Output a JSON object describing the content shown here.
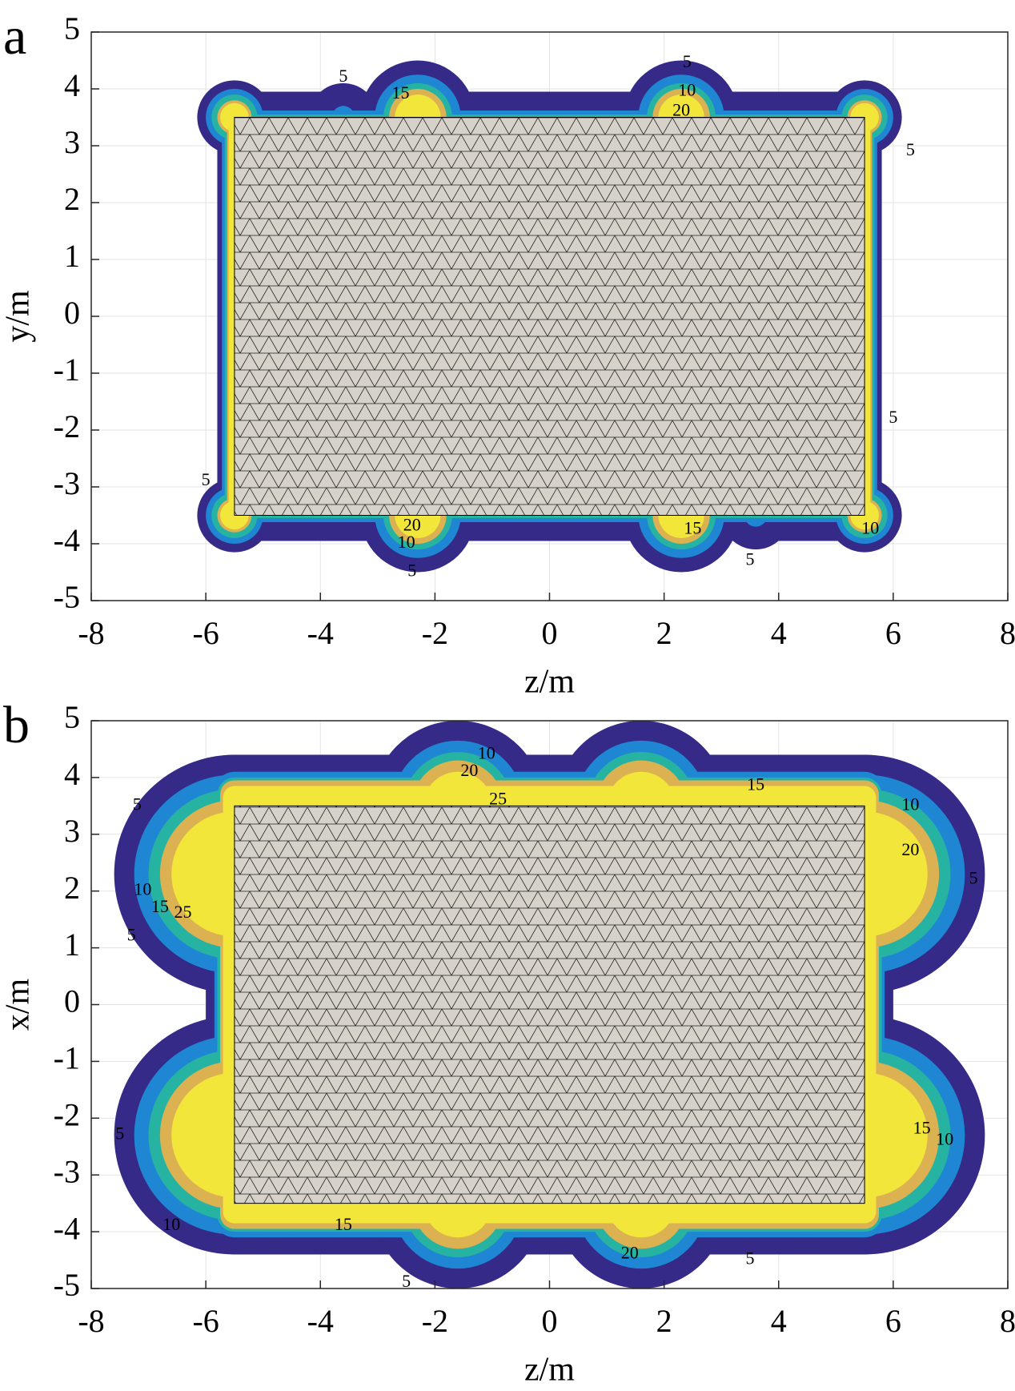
{
  "chart_data": [
    {
      "type": "contour",
      "title": "a",
      "xlabel": "z/m",
      "ylabel": "y/m",
      "xlim": [
        -8,
        8
      ],
      "ylim": [
        -5,
        5
      ],
      "xticks": [
        -8,
        -6,
        -4,
        -2,
        0,
        2,
        4,
        6,
        8
      ],
      "yticks": [
        -5,
        -4,
        -3,
        -2,
        -1,
        0,
        1,
        2,
        3,
        4,
        5
      ],
      "grid": true,
      "levels": [
        5,
        10,
        15,
        20,
        25
      ],
      "level_colors": [
        "#352a87",
        "#1f86d3",
        "#27b3a2",
        "#dcb152",
        "#f2e63a"
      ],
      "structure_x": [
        -5.5,
        5.5
      ],
      "structure_y": [
        -3.5,
        3.5
      ],
      "contour_labels": [
        {
          "x": -3.6,
          "y": 4.2,
          "level": 5
        },
        {
          "x": -2.6,
          "y": 3.9,
          "level": 15
        },
        {
          "x": 2.4,
          "y": 4.45,
          "level": 5
        },
        {
          "x": 2.4,
          "y": 3.95,
          "level": 10
        },
        {
          "x": 2.3,
          "y": 3.6,
          "level": 20
        },
        {
          "x": 6.3,
          "y": 2.9,
          "level": 5
        },
        {
          "x": -6.0,
          "y": -2.9,
          "level": 5
        },
        {
          "x": -2.4,
          "y": -4.5,
          "level": 5
        },
        {
          "x": -2.5,
          "y": -4.0,
          "level": 10
        },
        {
          "x": -2.4,
          "y": -3.7,
          "level": 20
        },
        {
          "x": 2.5,
          "y": -3.75,
          "level": 15
        },
        {
          "x": 3.5,
          "y": -4.3,
          "level": 5
        },
        {
          "x": 5.6,
          "y": -3.75,
          "level": 10
        },
        {
          "x": 6.0,
          "y": -1.8,
          "level": 5
        }
      ]
    },
    {
      "type": "contour",
      "title": "b",
      "xlabel": "z/m",
      "ylabel": "x/m",
      "xlim": [
        -8,
        8
      ],
      "ylim": [
        -5,
        5
      ],
      "xticks": [
        -8,
        -6,
        -4,
        -2,
        0,
        2,
        4,
        6,
        8
      ],
      "yticks": [
        -5,
        -4,
        -3,
        -2,
        -1,
        0,
        1,
        2,
        3,
        4,
        5
      ],
      "grid": true,
      "levels": [
        5,
        10,
        15,
        20,
        25
      ],
      "level_colors": [
        "#352a87",
        "#1f86d3",
        "#27b3a2",
        "#dcb152",
        "#f2e63a"
      ],
      "structure_x": [
        -5.5,
        5.5
      ],
      "structure_y": [
        -3.5,
        3.5
      ],
      "contour_labels": [
        {
          "x": -7.2,
          "y": 3.5,
          "level": 5
        },
        {
          "x": -7.1,
          "y": 2.0,
          "level": 10
        },
        {
          "x": -6.8,
          "y": 1.7,
          "level": 15
        },
        {
          "x": -6.4,
          "y": 1.6,
          "level": 25
        },
        {
          "x": -7.3,
          "y": 1.2,
          "level": 5
        },
        {
          "x": -1.1,
          "y": 4.4,
          "level": 10
        },
        {
          "x": -1.4,
          "y": 4.1,
          "level": 20
        },
        {
          "x": -0.9,
          "y": 3.6,
          "level": 25
        },
        {
          "x": 3.6,
          "y": 3.85,
          "level": 15
        },
        {
          "x": 6.3,
          "y": 3.5,
          "level": 10
        },
        {
          "x": 6.3,
          "y": 2.7,
          "level": 20
        },
        {
          "x": 7.4,
          "y": 2.2,
          "level": 5
        },
        {
          "x": 6.5,
          "y": -2.2,
          "level": 15
        },
        {
          "x": 6.9,
          "y": -2.4,
          "level": 10
        },
        {
          "x": -6.6,
          "y": -3.9,
          "level": 10
        },
        {
          "x": -3.6,
          "y": -3.9,
          "level": 15
        },
        {
          "x": 1.4,
          "y": -4.4,
          "level": 20
        },
        {
          "x": 3.5,
          "y": -4.5,
          "level": 5
        },
        {
          "x": -7.5,
          "y": -2.3,
          "level": 5
        },
        {
          "x": -2.5,
          "y": -4.9,
          "level": 5
        }
      ]
    }
  ]
}
